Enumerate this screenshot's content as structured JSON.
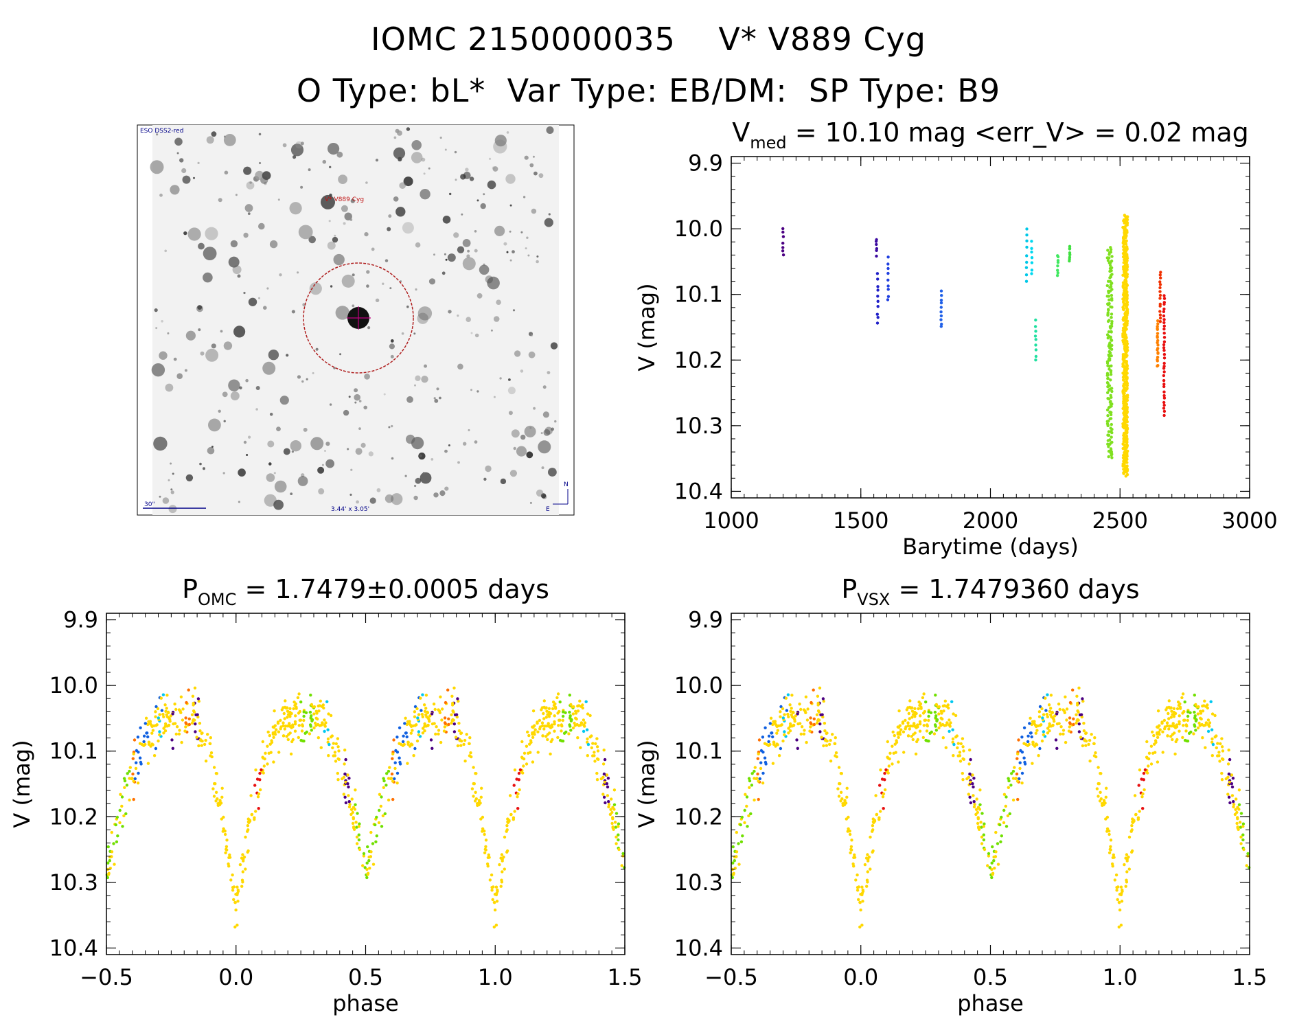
{
  "header": {
    "title_line1": "IOMC 2150000035    V* V889 Cyg",
    "title_line2": "O Type: bL*  Var Type: EB/DM:  SP Type: B9"
  },
  "finder": {
    "survey_label": "ESO DSS2-red",
    "target_label": "V* V889 Cyg",
    "scale_label": "30\"",
    "size_label": "3.44' x 3.05'",
    "north_label": "N",
    "east_label": "E"
  },
  "chart_data": [
    {
      "id": "lightcurve",
      "type": "scatter",
      "title_main": "V",
      "title_sub": "med",
      "title_rest": " = 10.10 mag <err_V> = 0.02 mag",
      "xlabel": "Barytime (days)",
      "ylabel": "V (mag)",
      "xlim": [
        1000,
        3000
      ],
      "ylim": [
        10.41,
        9.89
      ],
      "xticks": [
        1000,
        1500,
        2000,
        2500,
        3000
      ],
      "xtick_labels": [
        "1000",
        "1500",
        "2000",
        "2500",
        "3000"
      ],
      "yticks": [
        9.9,
        10.0,
        10.1,
        10.2,
        10.3,
        10.4
      ],
      "ytick_labels": [
        "9.9",
        "10.0",
        "10.1",
        "10.2",
        "10.3",
        "10.4"
      ],
      "groups": [
        {
          "x": 1200,
          "y_min": 10.0,
          "y_max": 10.04,
          "n": 7,
          "color": "#4b0082"
        },
        {
          "x": 1560,
          "y_min": 10.015,
          "y_max": 10.04,
          "n": 6,
          "color": "#3c0aa0"
        },
        {
          "x": 1565,
          "y_min": 10.07,
          "y_max": 10.145,
          "n": 10,
          "color": "#2020c8"
        },
        {
          "x": 1605,
          "y_min": 10.045,
          "y_max": 10.11,
          "n": 9,
          "color": "#2040e0"
        },
        {
          "x": 1810,
          "y_min": 10.095,
          "y_max": 10.15,
          "n": 10,
          "color": "#2060e8"
        },
        {
          "x": 2140,
          "y_min": 10.0,
          "y_max": 10.08,
          "n": 9,
          "color": "#00c8e8"
        },
        {
          "x": 2160,
          "y_min": 10.02,
          "y_max": 10.07,
          "n": 7,
          "color": "#00d8f0"
        },
        {
          "x": 2175,
          "y_min": 10.14,
          "y_max": 10.2,
          "n": 9,
          "color": "#20e0a0"
        },
        {
          "x": 2260,
          "y_min": 10.04,
          "y_max": 10.07,
          "n": 8,
          "color": "#40e860"
        },
        {
          "x": 2305,
          "y_min": 10.025,
          "y_max": 10.05,
          "n": 8,
          "color": "#40e040"
        },
        {
          "x": 2460,
          "y_min": 10.03,
          "y_max": 10.35,
          "n": 160,
          "color": "#80e020"
        },
        {
          "x": 2520,
          "y_min": 9.98,
          "y_max": 10.375,
          "n": 500,
          "color": "#ffd800"
        },
        {
          "x": 2645,
          "y_min": 10.14,
          "y_max": 10.21,
          "n": 20,
          "color": "#ff8000"
        },
        {
          "x": 2655,
          "y_min": 10.065,
          "y_max": 10.14,
          "n": 15,
          "color": "#f03000"
        },
        {
          "x": 2670,
          "y_min": 10.1,
          "y_max": 10.285,
          "n": 35,
          "color": "#e81010"
        }
      ]
    },
    {
      "id": "phase-omc",
      "type": "scatter",
      "title_main": "P",
      "title_sub": "OMC",
      "title_rest": " = 1.7479±0.0005 days",
      "xlabel": "phase",
      "ylabel": "V (mag)",
      "xlim": [
        -0.5,
        1.5
      ],
      "ylim": [
        10.41,
        9.89
      ],
      "xticks": [
        -0.5,
        0.0,
        0.5,
        1.0,
        1.5
      ],
      "xtick_labels": [
        "−0.5",
        "0.0",
        "0.5",
        "1.0",
        "1.5"
      ],
      "yticks": [
        9.9,
        10.0,
        10.1,
        10.2,
        10.3,
        10.4
      ],
      "ytick_labels": [
        "9.9",
        "10.0",
        "10.1",
        "10.2",
        "10.3",
        "10.4"
      ],
      "curve_phase": [
        0.0,
        0.05,
        0.1,
        0.15,
        0.2,
        0.25,
        0.3,
        0.35,
        0.4,
        0.45,
        0.5,
        0.55,
        0.6,
        0.65,
        0.7,
        0.75,
        0.8,
        0.85,
        0.9,
        0.95,
        1.0
      ],
      "curve_mag": [
        10.34,
        10.22,
        10.12,
        10.07,
        10.06,
        10.05,
        10.04,
        10.06,
        10.11,
        10.19,
        10.29,
        10.2,
        10.13,
        10.08,
        10.06,
        10.05,
        10.04,
        10.05,
        10.1,
        10.2,
        10.34
      ],
      "color_groups": [
        {
          "name": "yellow",
          "color": "#ffd800",
          "phases": [
            [
              0.0,
              1.0
            ]
          ]
        },
        {
          "name": "green",
          "color": "#70e000",
          "phases": [
            [
              0.46,
              0.6
            ],
            [
              0.25,
              0.3
            ]
          ]
        },
        {
          "name": "red",
          "color": "#e81010",
          "phases": [
            [
              0.07,
              0.1
            ]
          ]
        },
        {
          "name": "orange",
          "color": "#ff7000",
          "phases": [
            [
              0.6,
              0.62
            ],
            [
              0.8,
              0.83
            ]
          ]
        },
        {
          "name": "blue",
          "color": "#1060e0",
          "phases": [
            [
              0.61,
              0.66
            ],
            [
              0.69,
              0.72
            ]
          ]
        },
        {
          "name": "cyan",
          "color": "#00c8f0",
          "phases": [
            [
              0.33,
              0.36
            ],
            [
              0.7,
              0.72
            ]
          ]
        },
        {
          "name": "purple",
          "color": "#4b0082",
          "phases": [
            [
              0.75,
              0.77
            ],
            [
              0.84,
              0.86
            ],
            [
              0.42,
              0.44
            ]
          ]
        }
      ]
    },
    {
      "id": "phase-vsx",
      "type": "scatter",
      "title_main": "P",
      "title_sub": "VSX",
      "title_rest": " = 1.7479360 days",
      "xlabel": "phase",
      "ylabel": "V (mag)",
      "xlim": [
        -0.5,
        1.5
      ],
      "ylim": [
        10.41,
        9.89
      ],
      "xticks": [
        -0.5,
        0.0,
        0.5,
        1.0,
        1.5
      ],
      "xtick_labels": [
        "−0.5",
        "0.0",
        "0.5",
        "1.0",
        "1.5"
      ],
      "yticks": [
        9.9,
        10.0,
        10.1,
        10.2,
        10.3,
        10.4
      ],
      "ytick_labels": [
        "9.9",
        "10.0",
        "10.1",
        "10.2",
        "10.3",
        "10.4"
      ]
    }
  ]
}
